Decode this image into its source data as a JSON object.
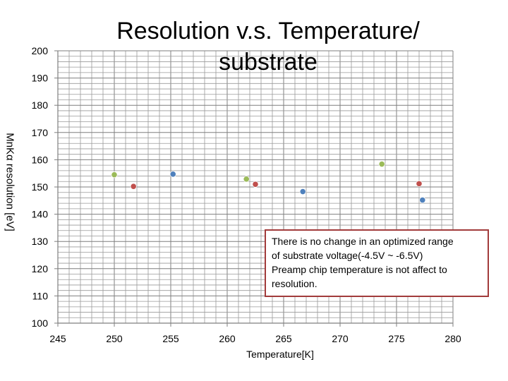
{
  "chart_data": {
    "type": "scatter",
    "title": "Resolution v.s. Temperature/ substrate",
    "xlabel": "Temperature[K]",
    "ylabel": "MnKα resolution [eV]",
    "xlim": [
      245,
      280
    ],
    "ylim": [
      100,
      200
    ],
    "x_ticks": [
      245,
      250,
      255,
      260,
      265,
      270,
      275,
      280
    ],
    "y_ticks": [
      100,
      110,
      120,
      130,
      140,
      150,
      160,
      170,
      180,
      190,
      200
    ],
    "grid": true,
    "series": [
      {
        "name": "green",
        "color": "#9bbb59",
        "points": [
          {
            "x": 250.0,
            "y": 154.5
          },
          {
            "x": 261.7,
            "y": 152.9
          },
          {
            "x": 273.7,
            "y": 158.4
          }
        ]
      },
      {
        "name": "red",
        "color": "#c0504d",
        "points": [
          {
            "x": 251.7,
            "y": 150.2
          },
          {
            "x": 262.5,
            "y": 151.0
          },
          {
            "x": 277.0,
            "y": 151.2
          }
        ]
      },
      {
        "name": "blue",
        "color": "#4f81bd",
        "points": [
          {
            "x": 255.2,
            "y": 154.7
          },
          {
            "x": 266.7,
            "y": 148.3
          },
          {
            "x": 277.3,
            "y": 145.2
          }
        ]
      }
    ]
  },
  "annotation": {
    "line1": "There is no change in an optimized range",
    "line2": "of substrate voltage(-4.5V ~ -6.5V)",
    "line3": "Preamp chip temperature is not affect to",
    "line4": "resolution."
  }
}
